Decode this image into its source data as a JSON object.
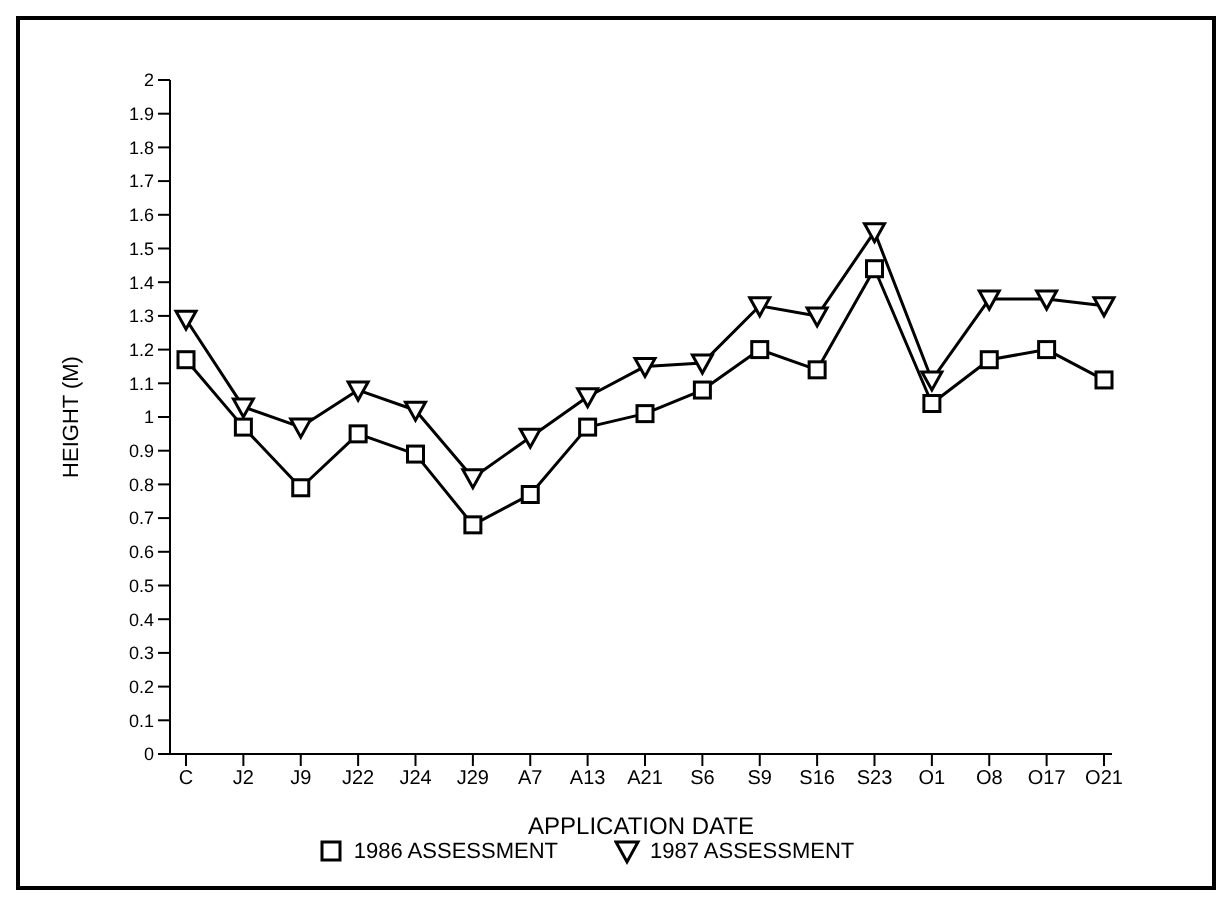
{
  "chart_data": {
    "type": "line",
    "xlabel": "APPLICATION DATE",
    "ylabel": "HEIGHT (M)",
    "categories": [
      "C",
      "J2",
      "J9",
      "J22",
      "J24",
      "J29",
      "A7",
      "A13",
      "A21",
      "S6",
      "S9",
      "S16",
      "S23",
      "O1",
      "O8",
      "O17",
      "O21"
    ],
    "series": [
      {
        "name": "1986 ASSESSMENT",
        "color": "#000000",
        "marker": "square",
        "values": [
          1.17,
          0.97,
          0.79,
          0.95,
          0.89,
          0.68,
          0.77,
          0.97,
          1.01,
          1.08,
          1.2,
          1.14,
          1.44,
          1.04,
          1.17,
          1.2,
          1.11
        ]
      },
      {
        "name": "1987 ASSESSMENT",
        "color": "#000000",
        "marker": "triangle",
        "values": [
          1.29,
          1.03,
          0.97,
          1.08,
          1.02,
          0.82,
          0.94,
          1.06,
          1.15,
          1.16,
          1.33,
          1.3,
          1.55,
          1.11,
          1.35,
          1.35,
          1.33
        ]
      }
    ],
    "ylim": [
      0,
      2
    ],
    "yticks": [
      0,
      0.1,
      0.2,
      0.3,
      0.4,
      0.5,
      0.6,
      0.7,
      0.8,
      0.9,
      1,
      1.1,
      1.2,
      1.3,
      1.4,
      1.5,
      1.6,
      1.7,
      1.8,
      1.9,
      2
    ],
    "grid": false,
    "legend": "bottom",
    "line_style": "solid"
  }
}
